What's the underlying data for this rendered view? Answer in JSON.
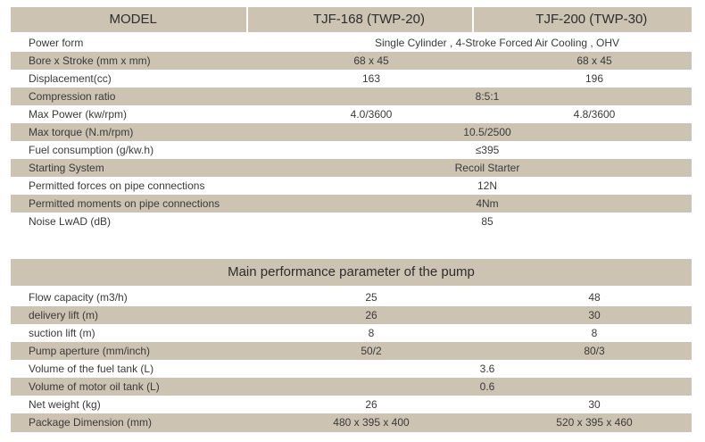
{
  "header": {
    "model_label": "MODEL",
    "model_a": "TJF-168 (TWP-20)",
    "model_b": "TJF-200 (TWP-30)"
  },
  "engine_rows": [
    {
      "label": "Power form",
      "span": "Single Cylinder , 4-Stroke Forced Air Cooling , OHV"
    },
    {
      "label": "Bore x Stroke (mm x mm)",
      "a": "68 x 45",
      "b": "68 x 45"
    },
    {
      "label": "Displacement(cc)",
      "a": "163",
      "b": "196"
    },
    {
      "label": "Compression ratio",
      "span": "8:5:1"
    },
    {
      "label": "Max  Power (kw/rpm)",
      "a": "4.0/3600",
      "b": "4.8/3600"
    },
    {
      "label": "Max torque (N.m/rpm)",
      "span": "10.5/2500"
    },
    {
      "label": "Fuel consumption (g/kw.h)",
      "span": "≤395"
    },
    {
      "label": "Starting System",
      "span": "Recoil Starter"
    },
    {
      "label": "Permitted forces on pipe connections",
      "span": "12N"
    },
    {
      "label": "Permitted moments on pipe connections",
      "span": "4Nm"
    },
    {
      "label": "Noise LwAD (dB)",
      "span": "85"
    }
  ],
  "pump_title": "Main performance parameter of the pump",
  "pump_rows": [
    {
      "label": "Flow capacity (m3/h)",
      "a": "25",
      "b": "48"
    },
    {
      "label": "delivery lift (m)",
      "a": "26",
      "b": "30"
    },
    {
      "label": "suction lift (m)",
      "a": "8",
      "b": "8"
    },
    {
      "label": "Pump aperture (mm/inch)",
      "a": "50/2",
      "b": "80/3"
    },
    {
      "label": "Volume of the fuel tank (L)",
      "span": "3.6"
    },
    {
      "label": "Volume of motor oil tank (L)",
      "span": "0.6"
    },
    {
      "label": "Net weight (kg)",
      "a": "26",
      "b": "30"
    },
    {
      "label": "Package Dimension (mm)",
      "a": "480 x 395 x 400",
      "b": "520 x 395 x 460"
    }
  ],
  "colors": {
    "shade": "#ccc3b3",
    "text": "#3a3a3a"
  }
}
